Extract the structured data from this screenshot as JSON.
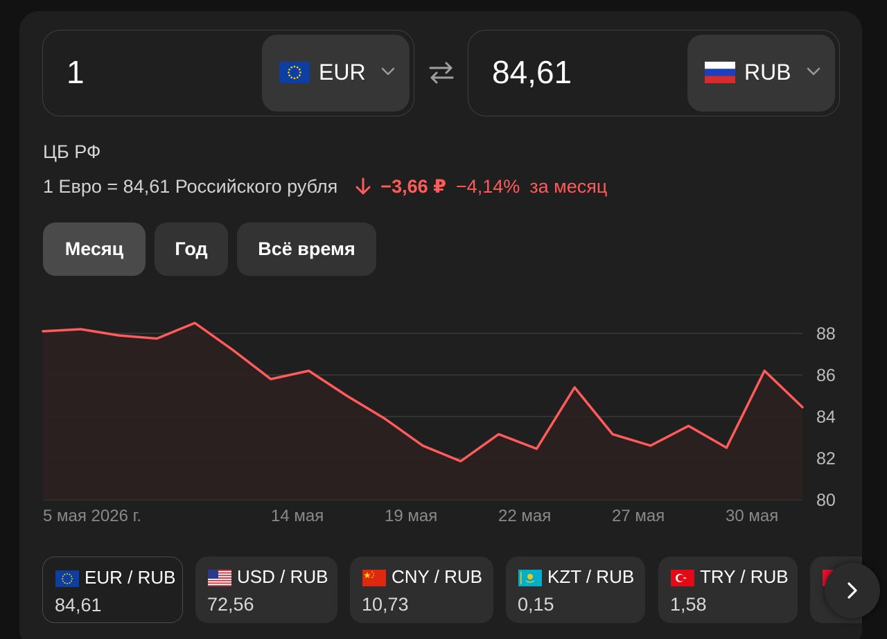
{
  "converter": {
    "from": {
      "amount": "1",
      "currency": "EUR",
      "flag_icon": "eu-flag-icon"
    },
    "to": {
      "amount": "84,61",
      "currency": "RUB",
      "flag_icon": "ru-flag-icon"
    }
  },
  "rate": {
    "source": "ЦБ РФ",
    "description": "1 Евро = 84,61 Российского рубля",
    "change_abs": "−3,66 ₽",
    "change_pct": "−4,14%",
    "change_period": "за месяц",
    "direction_icon": "arrow-down-icon"
  },
  "periods": [
    {
      "label": "Месяц",
      "active": true
    },
    {
      "label": "Год",
      "active": false
    },
    {
      "label": "Всё время",
      "active": false
    }
  ],
  "chart_data": {
    "type": "area",
    "title": "",
    "xlabel": "",
    "ylabel": "",
    "x_tick_labels": [
      "5 мая 2026 г.",
      "14 мая",
      "19 мая",
      "22 мая",
      "27 мая",
      "30 мая"
    ],
    "y_ticks": [
      80,
      82,
      84,
      86,
      88
    ],
    "ylim": [
      80,
      88.5
    ],
    "grid": true,
    "series": [
      {
        "values": [
          88.1,
          88.2,
          87.9,
          87.75,
          88.5,
          87.2,
          85.8,
          86.2,
          85.0,
          83.9,
          82.6,
          81.85,
          83.15,
          82.45,
          85.4,
          83.15,
          82.6,
          83.55,
          82.5,
          86.2,
          84.45
        ]
      }
    ],
    "colors": {
      "line": "#ff5b5b",
      "fill": "#2b2020",
      "grid": "#3a3a3a"
    }
  },
  "pairs": [
    {
      "name": "EUR / RUB",
      "value": "84,61",
      "flag_icon": "eu-flag-icon",
      "active": true
    },
    {
      "name": "USD / RUB",
      "value": "72,56",
      "flag_icon": "us-flag-icon",
      "active": false
    },
    {
      "name": "CNY / RUB",
      "value": "10,73",
      "flag_icon": "cn-flag-icon",
      "active": false
    },
    {
      "name": "KZT / RUB",
      "value": "0,15",
      "flag_icon": "kz-flag-icon",
      "active": false
    },
    {
      "name": "TRY / RUB",
      "value": "1,58",
      "flag_icon": "tr-flag-icon",
      "active": false
    }
  ],
  "controls": {
    "swap_icon": "swap-arrows-icon",
    "next_icon": "chevron-right-icon"
  }
}
